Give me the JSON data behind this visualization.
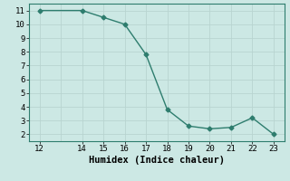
{
  "x": [
    12,
    14,
    15,
    16,
    17,
    18,
    19,
    20,
    21,
    22,
    23
  ],
  "y": [
    11.0,
    11.0,
    10.5,
    10.0,
    7.8,
    3.8,
    2.6,
    2.4,
    2.5,
    3.2,
    2.0
  ],
  "line_color": "#2e7d6e",
  "marker": "D",
  "marker_size": 2.5,
  "bg_color": "#cce8e4",
  "grid_color": "#b8d4d0",
  "xlabel": "Humidex (Indice chaleur)",
  "xlim": [
    11.5,
    23.5
  ],
  "ylim": [
    1.5,
    11.5
  ],
  "xticks": [
    12,
    14,
    15,
    16,
    17,
    18,
    19,
    20,
    21,
    22,
    23
  ],
  "yticks": [
    2,
    3,
    4,
    5,
    6,
    7,
    8,
    9,
    10,
    11
  ],
  "xlabel_fontsize": 7.5,
  "tick_fontsize": 6.5,
  "line_width": 1.0
}
